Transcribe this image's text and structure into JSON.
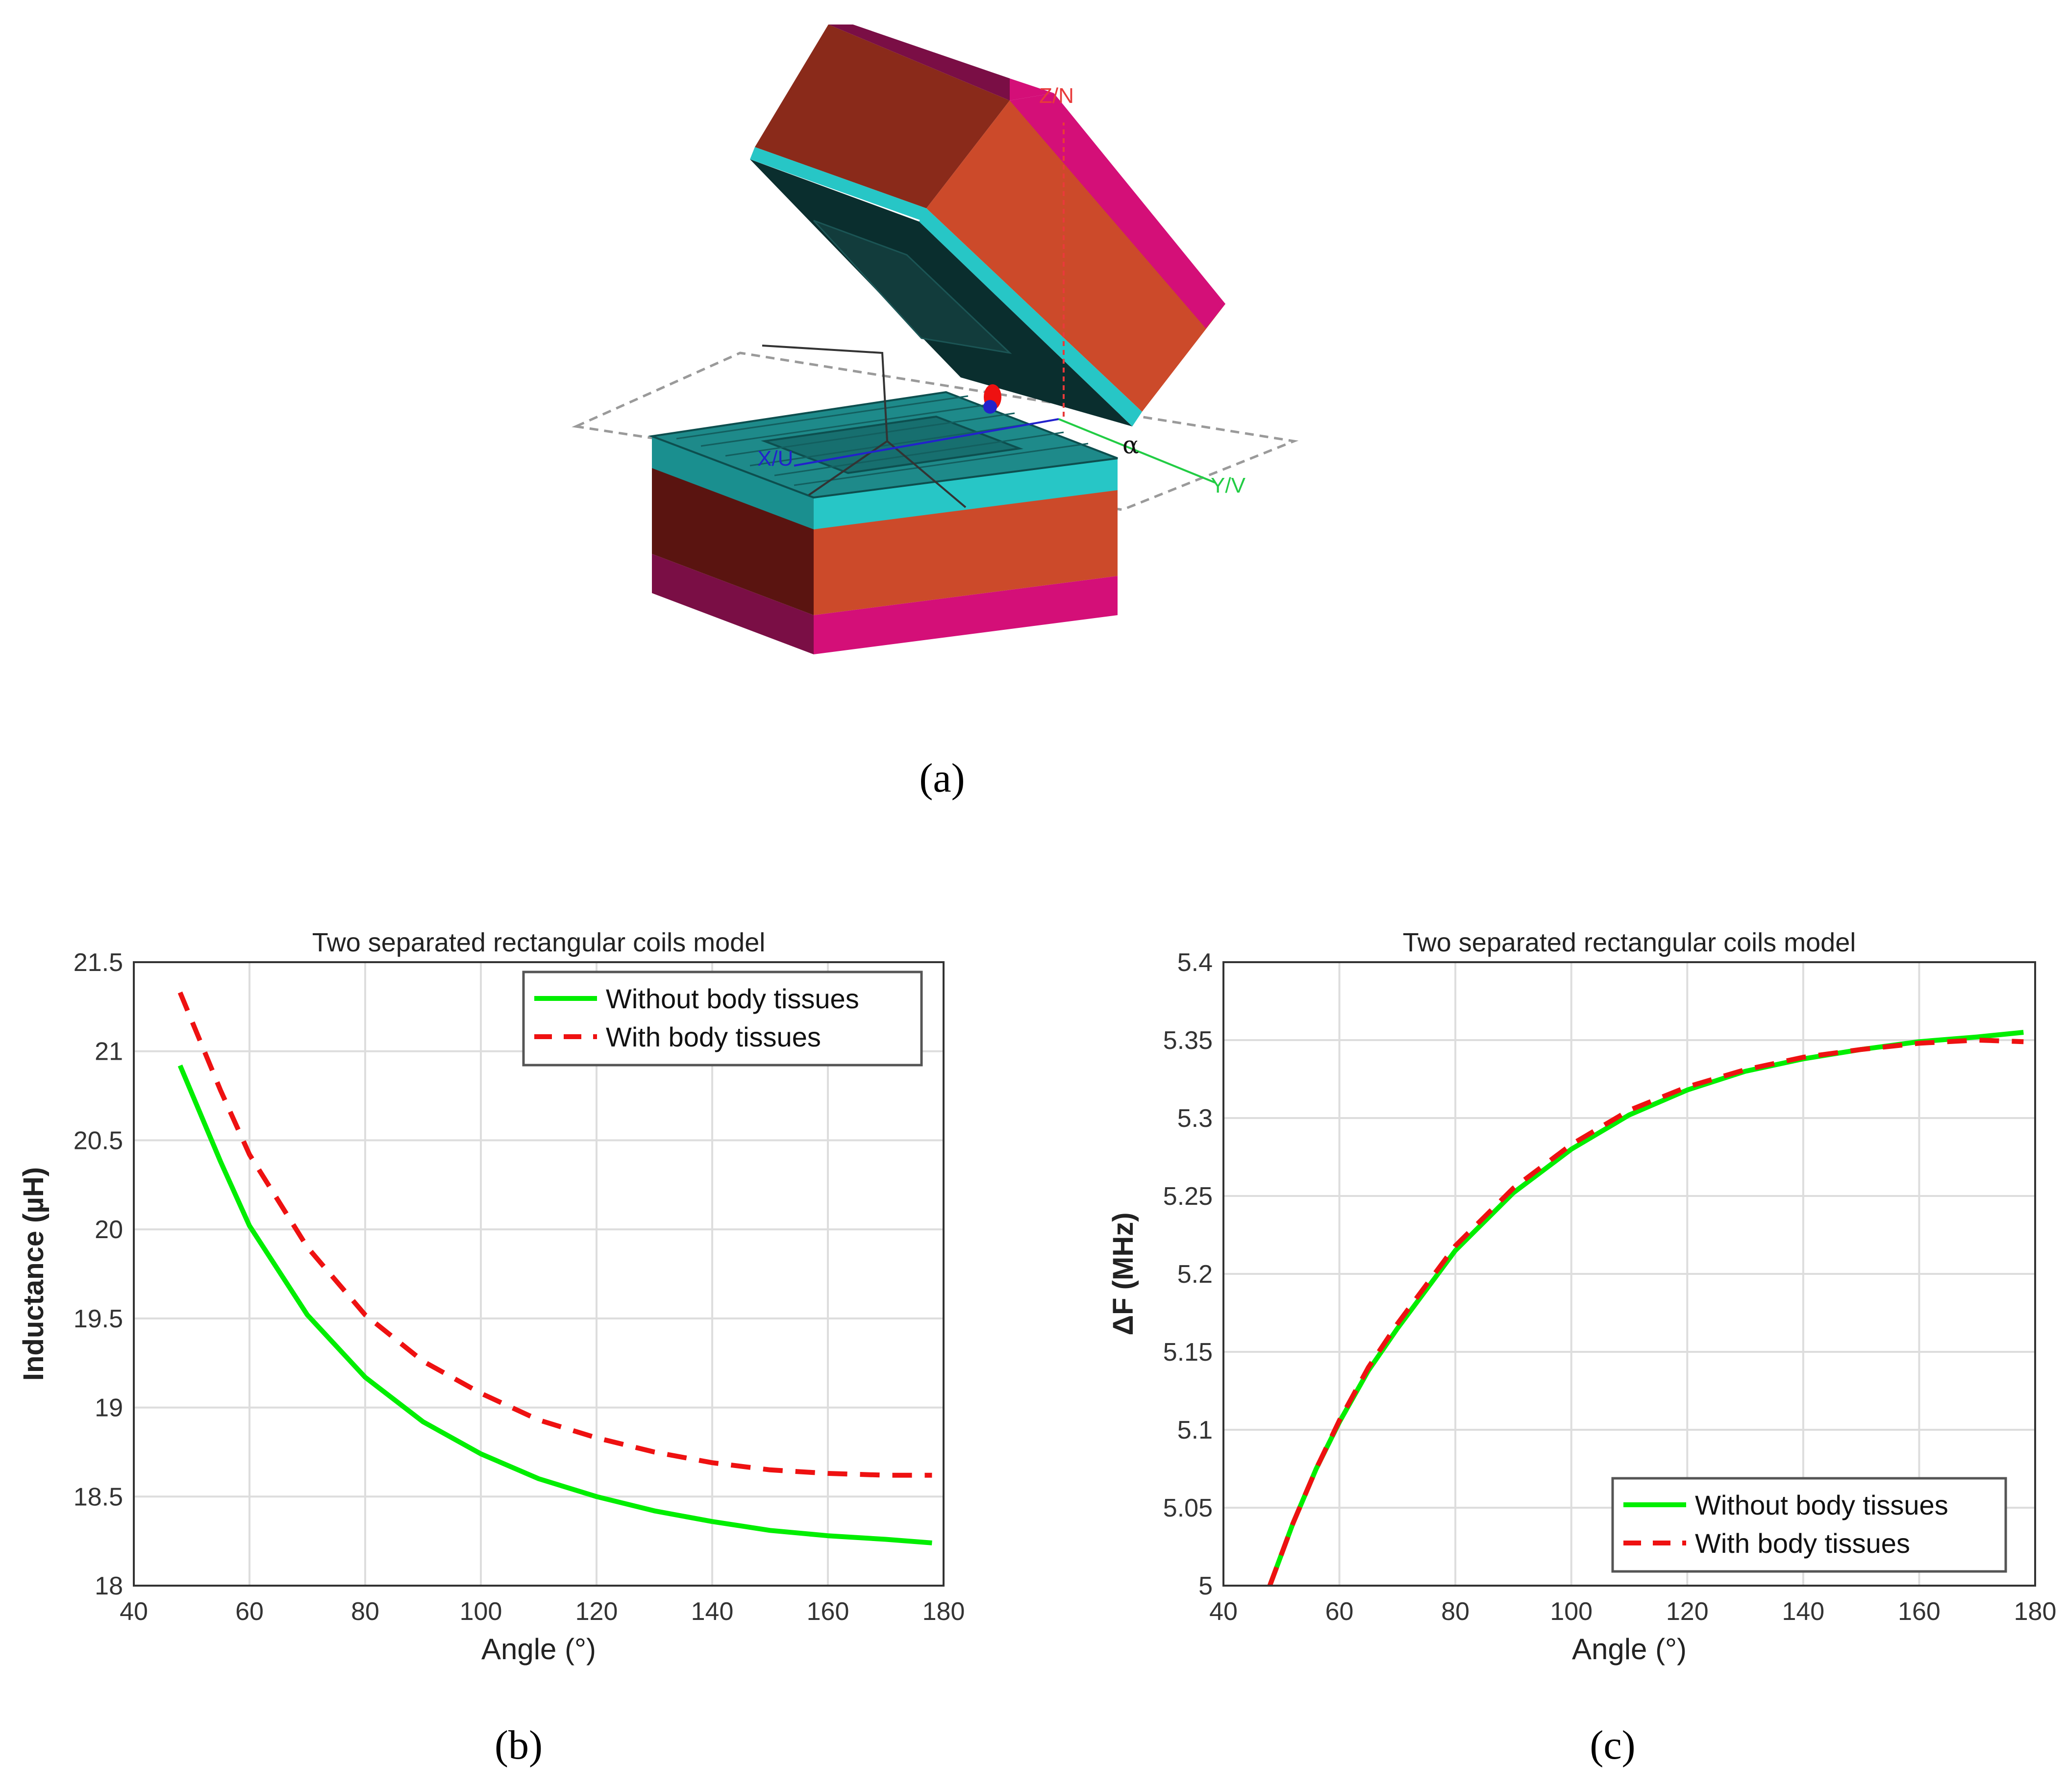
{
  "figure": {
    "panel_a": {
      "label": "(a)",
      "axes": {
        "z": "Z/N",
        "x": "X/U",
        "y": "Y/V",
        "angle_symbol": "α"
      }
    },
    "panel_b": {
      "label": "(b)"
    },
    "panel_c": {
      "label": "(c)"
    }
  },
  "colors": {
    "without": "#00ee00",
    "with": "#ee1111",
    "grid": "#dddddd",
    "coil_top": "#1e8a8a",
    "core_front": "#cc4a2a",
    "core_side": "#5a1410",
    "cap_front": "#d40f78",
    "cap_side": "#7a0e45",
    "pad": "#27c6c6"
  },
  "chart_data": [
    {
      "type": "line",
      "title": "Two separated rectangular coils model",
      "xlabel": "Angle (°)",
      "ylabel": "Inductance (µH)",
      "xlim": [
        40,
        180
      ],
      "ylim": [
        18,
        21.5
      ],
      "xticks": [
        "40",
        "60",
        "80",
        "100",
        "120",
        "140",
        "160",
        "180"
      ],
      "yticks": [
        "18",
        "18.5",
        "19",
        "19.5",
        "20",
        "20.5",
        "21",
        "21.5"
      ],
      "grid": true,
      "legend_position": "top-right",
      "x": [
        48,
        55,
        60,
        70,
        80,
        90,
        100,
        110,
        120,
        130,
        140,
        150,
        160,
        170,
        178
      ],
      "series": [
        {
          "name": "Without body tissues",
          "style": "solid",
          "values": [
            20.92,
            20.38,
            20.02,
            19.52,
            19.17,
            18.92,
            18.74,
            18.6,
            18.5,
            18.42,
            18.36,
            18.31,
            18.28,
            18.26,
            18.24
          ]
        },
        {
          "name": "With body tissues",
          "style": "dashed",
          "values": [
            21.33,
            20.78,
            20.42,
            19.9,
            19.52,
            19.26,
            19.08,
            18.93,
            18.83,
            18.75,
            18.69,
            18.65,
            18.63,
            18.62,
            18.62
          ]
        }
      ]
    },
    {
      "type": "line",
      "title": "Two separated rectangular coils model",
      "xlabel": "Angle (°)",
      "ylabel": "ΔF (MHz)",
      "xlim": [
        40,
        180
      ],
      "ylim": [
        5,
        5.4
      ],
      "xticks": [
        "40",
        "60",
        "80",
        "100",
        "120",
        "140",
        "160",
        "180"
      ],
      "yticks": [
        "5",
        "5.05",
        "5.1",
        "5.15",
        "5.2",
        "5.25",
        "5.3",
        "5.35",
        "5.4"
      ],
      "grid": true,
      "legend_position": "bottom-right",
      "x": [
        48,
        52,
        56,
        60,
        65,
        70,
        80,
        90,
        100,
        110,
        120,
        130,
        140,
        150,
        160,
        170,
        178
      ],
      "series": [
        {
          "name": "Without body tissues",
          "style": "solid",
          "values": [
            5.0,
            5.04,
            5.075,
            5.105,
            5.138,
            5.165,
            5.215,
            5.252,
            5.28,
            5.302,
            5.318,
            5.33,
            5.338,
            5.344,
            5.349,
            5.352,
            5.355
          ]
        },
        {
          "name": "With body tissues",
          "style": "dashed",
          "values": [
            5.0,
            5.04,
            5.075,
            5.106,
            5.14,
            5.168,
            5.218,
            5.255,
            5.283,
            5.305,
            5.32,
            5.331,
            5.339,
            5.344,
            5.348,
            5.35,
            5.349
          ]
        }
      ]
    }
  ]
}
